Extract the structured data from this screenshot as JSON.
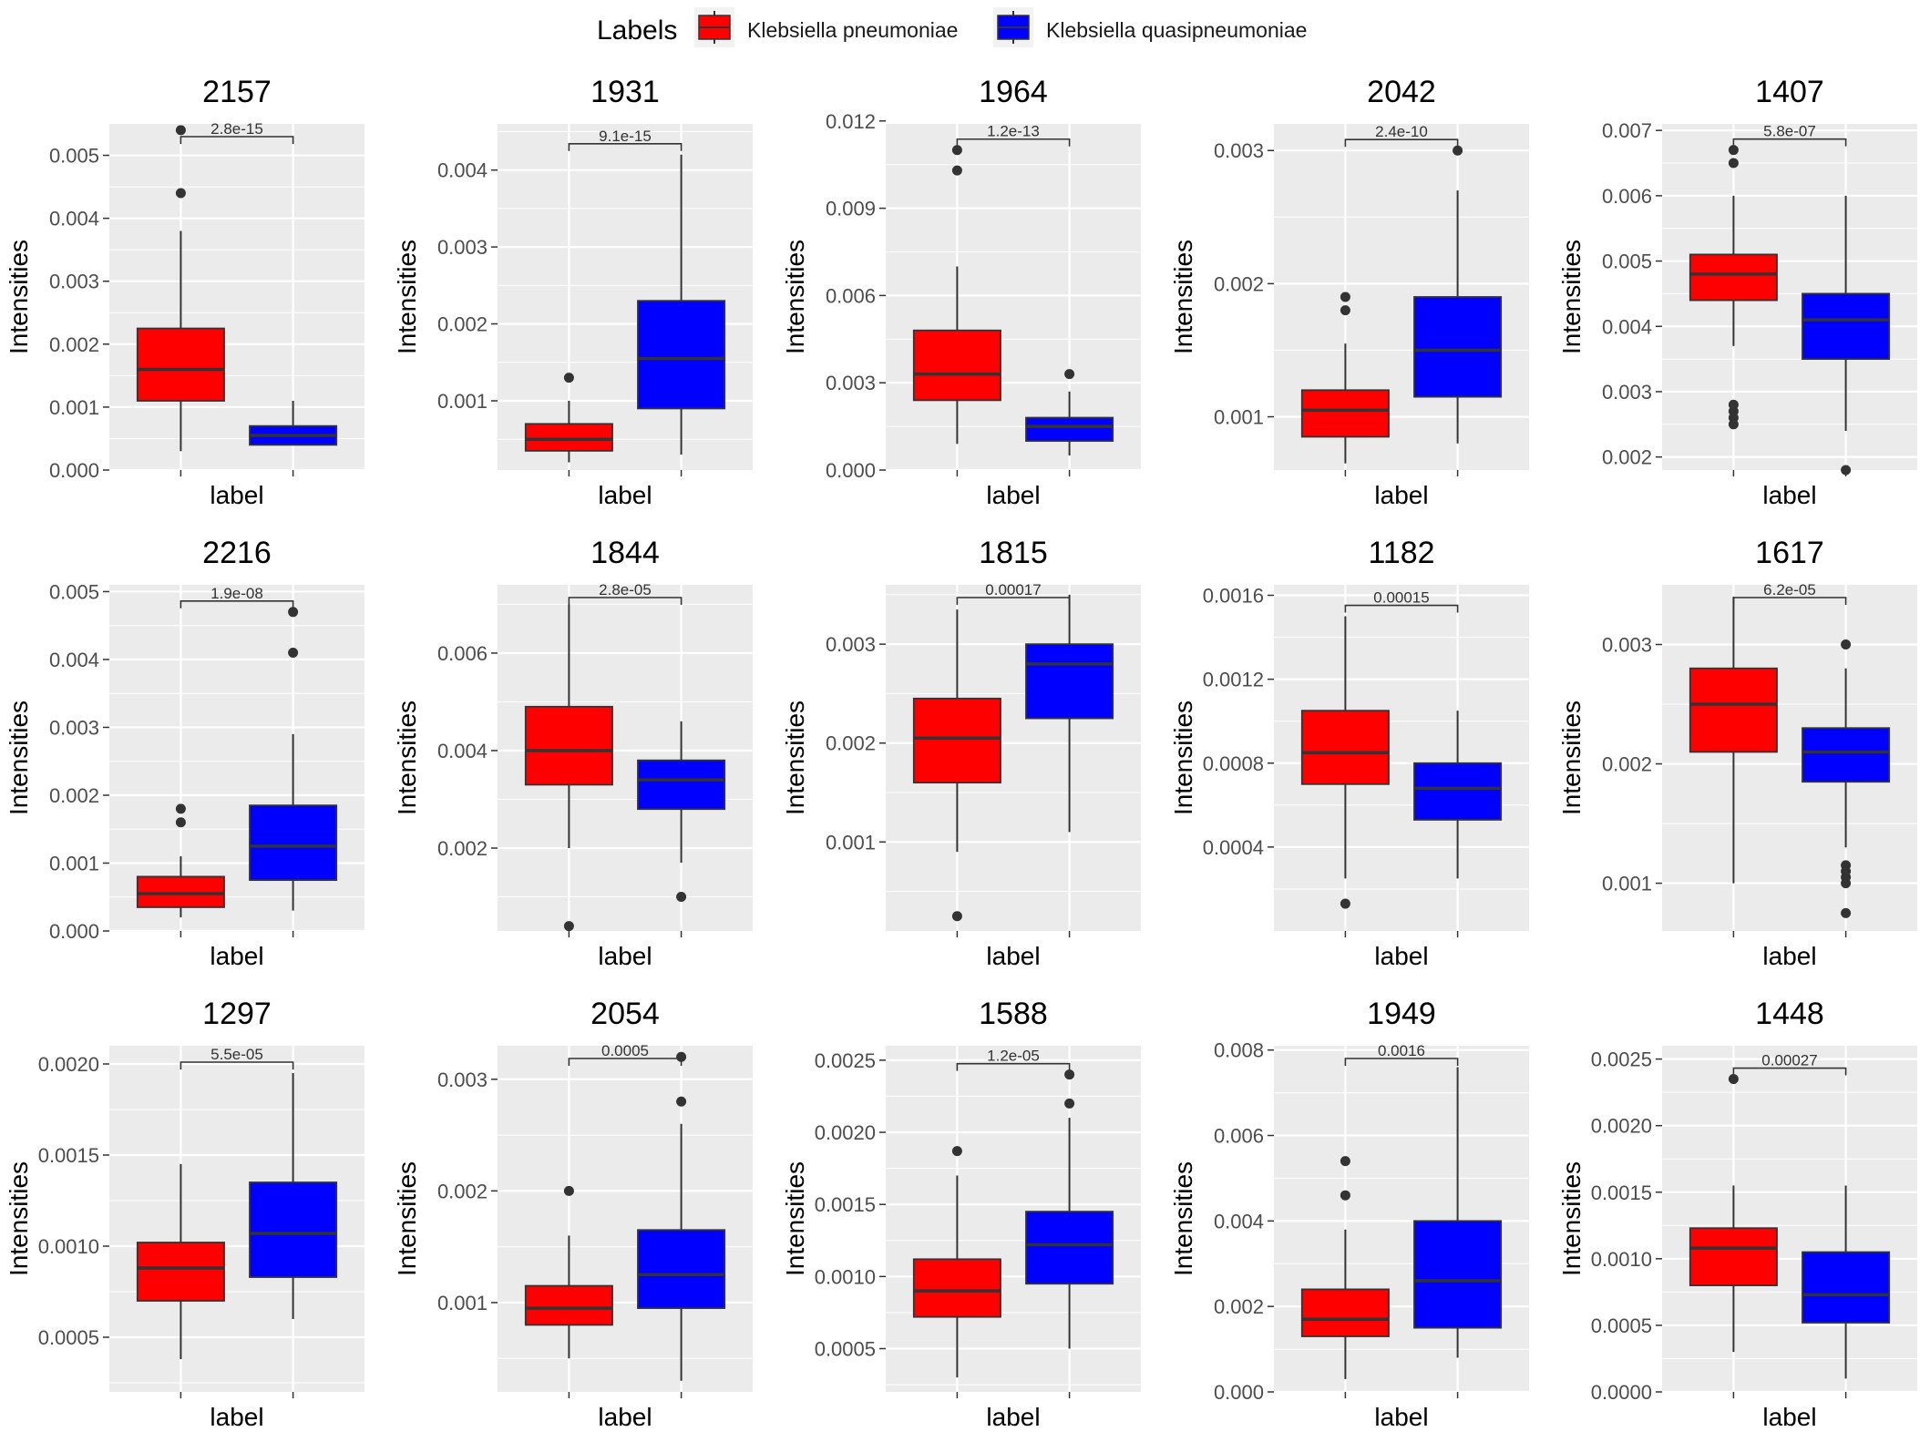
{
  "legend": {
    "title": "Labels",
    "items": [
      {
        "label": "Klebsiella pneumoniae",
        "color": "#FF0000"
      },
      {
        "label": "Klebsiella quasipneumoniae",
        "color": "#0000FF"
      }
    ]
  },
  "colors": {
    "panel_background": "#EBEBEB",
    "grid_line": "#FFFFFF",
    "box_outline": "#333333",
    "outlier": "#333333"
  },
  "chart_data": [
    {
      "type": "box",
      "title": "2157",
      "xlabel": "label",
      "ylabel": "Intensities",
      "pvalue": "2.8e-15",
      "ylim": [
        0,
        0.0055
      ],
      "yticks": [
        0,
        0.001,
        0.002,
        0.003,
        0.004,
        0.005
      ],
      "ytick_labels": [
        "0.000",
        "0.001",
        "0.002",
        "0.003",
        "0.004",
        "0.005"
      ],
      "groups": [
        {
          "name": "Klebsiella pneumoniae",
          "color": "#FF0000",
          "low": 0.0003,
          "q1": 0.0011,
          "median": 0.0016,
          "q3": 0.00225,
          "high": 0.0038,
          "outliers": [
            0.0044,
            0.0054
          ]
        },
        {
          "name": "Klebsiella quasipneumoniae",
          "color": "#0000FF",
          "low": 0.0004,
          "q1": 0.0004,
          "median": 0.00055,
          "q3": 0.0007,
          "high": 0.0011,
          "outliers": []
        }
      ]
    },
    {
      "type": "box",
      "title": "1931",
      "xlabel": "label",
      "ylabel": "Intensities",
      "pvalue": "9.1e-15",
      "ylim": [
        0.0001,
        0.0046
      ],
      "yticks": [
        0.001,
        0.002,
        0.003,
        0.004
      ],
      "ytick_labels": [
        "0.001",
        "0.002",
        "0.003",
        "0.004"
      ],
      "groups": [
        {
          "name": "Klebsiella pneumoniae",
          "color": "#FF0000",
          "low": 0.0002,
          "q1": 0.00035,
          "median": 0.0005,
          "q3": 0.0007,
          "high": 0.001,
          "outliers": [
            0.0013
          ]
        },
        {
          "name": "Klebsiella quasipneumoniae",
          "color": "#0000FF",
          "low": 0.0003,
          "q1": 0.0009,
          "median": 0.00155,
          "q3": 0.0023,
          "high": 0.0042,
          "outliers": []
        }
      ]
    },
    {
      "type": "box",
      "title": "1964",
      "xlabel": "label",
      "ylabel": "Intensities",
      "pvalue": "1.2e-13",
      "ylim": [
        0,
        0.0119
      ],
      "yticks": [
        0,
        0.003,
        0.006,
        0.009,
        0.012
      ],
      "ytick_labels": [
        "0.000",
        "0.003",
        "0.006",
        "0.009",
        "0.012"
      ],
      "groups": [
        {
          "name": "Klebsiella pneumoniae",
          "color": "#FF0000",
          "low": 0.0009,
          "q1": 0.0024,
          "median": 0.0033,
          "q3": 0.0048,
          "high": 0.007,
          "outliers": [
            0.0103,
            0.011
          ]
        },
        {
          "name": "Klebsiella quasipneumoniae",
          "color": "#0000FF",
          "low": 0.0005,
          "q1": 0.001,
          "median": 0.0015,
          "q3": 0.0018,
          "high": 0.0027,
          "outliers": [
            0.0033
          ]
        }
      ]
    },
    {
      "type": "box",
      "title": "2042",
      "xlabel": "label",
      "ylabel": "Intensities",
      "pvalue": "2.4e-10",
      "ylim": [
        0.0006,
        0.0032
      ],
      "yticks": [
        0.001,
        0.002,
        0.003
      ],
      "ytick_labels": [
        "0.001",
        "0.002",
        "0.003"
      ],
      "groups": [
        {
          "name": "Klebsiella pneumoniae",
          "color": "#FF0000",
          "low": 0.00065,
          "q1": 0.00085,
          "median": 0.00105,
          "q3": 0.0012,
          "high": 0.00155,
          "outliers": [
            0.0018,
            0.0019
          ]
        },
        {
          "name": "Klebsiella quasipneumoniae",
          "color": "#0000FF",
          "low": 0.0008,
          "q1": 0.00115,
          "median": 0.0015,
          "q3": 0.0019,
          "high": 0.0027,
          "outliers": [
            0.003
          ]
        }
      ]
    },
    {
      "type": "box",
      "title": "1407",
      "xlabel": "label",
      "ylabel": "Intensities",
      "pvalue": "5.8e-07",
      "ylim": [
        0.0018,
        0.0071
      ],
      "yticks": [
        0.002,
        0.003,
        0.004,
        0.005,
        0.006,
        0.007
      ],
      "ytick_labels": [
        "0.002",
        "0.003",
        "0.004",
        "0.005",
        "0.006",
        "0.007"
      ],
      "groups": [
        {
          "name": "Klebsiella pneumoniae",
          "color": "#FF0000",
          "low": 0.0037,
          "q1": 0.0044,
          "median": 0.0048,
          "q3": 0.0051,
          "high": 0.006,
          "outliers": [
            0.0025,
            0.0026,
            0.0027,
            0.0028,
            0.0065,
            0.0067
          ]
        },
        {
          "name": "Klebsiella quasipneumoniae",
          "color": "#0000FF",
          "low": 0.0024,
          "q1": 0.0035,
          "median": 0.0041,
          "q3": 0.0045,
          "high": 0.006,
          "outliers": [
            0.0018
          ]
        }
      ]
    },
    {
      "type": "box",
      "title": "2216",
      "xlabel": "label",
      "ylabel": "Intensities",
      "pvalue": "1.9e-08",
      "ylim": [
        0,
        0.0051
      ],
      "yticks": [
        0,
        0.001,
        0.002,
        0.003,
        0.004,
        0.005
      ],
      "ytick_labels": [
        "0.000",
        "0.001",
        "0.002",
        "0.003",
        "0.004",
        "0.005"
      ],
      "groups": [
        {
          "name": "Klebsiella pneumoniae",
          "color": "#FF0000",
          "low": 0.0002,
          "q1": 0.00035,
          "median": 0.00055,
          "q3": 0.0008,
          "high": 0.0011,
          "outliers": [
            0.0016,
            0.0018
          ]
        },
        {
          "name": "Klebsiella quasipneumoniae",
          "color": "#0000FF",
          "low": 0.0003,
          "q1": 0.00075,
          "median": 0.00125,
          "q3": 0.00185,
          "high": 0.0029,
          "outliers": [
            0.0041,
            0.0047
          ]
        }
      ]
    },
    {
      "type": "box",
      "title": "1844",
      "xlabel": "label",
      "ylabel": "Intensities",
      "pvalue": "2.8e-05",
      "ylim": [
        0.0003,
        0.0074
      ],
      "yticks": [
        0.002,
        0.004,
        0.006
      ],
      "ytick_labels": [
        "0.002",
        "0.004",
        "0.006"
      ],
      "groups": [
        {
          "name": "Klebsiella pneumoniae",
          "color": "#FF0000",
          "low": 0.002,
          "q1": 0.0033,
          "median": 0.004,
          "q3": 0.0049,
          "high": 0.007,
          "outliers": [
            0.0004
          ]
        },
        {
          "name": "Klebsiella quasipneumoniae",
          "color": "#0000FF",
          "low": 0.0017,
          "q1": 0.0028,
          "median": 0.0034,
          "q3": 0.0038,
          "high": 0.0046,
          "outliers": [
            0.001
          ]
        }
      ]
    },
    {
      "type": "box",
      "title": "1815",
      "xlabel": "label",
      "ylabel": "Intensities",
      "pvalue": "0.00017",
      "ylim": [
        0.0001,
        0.0036
      ],
      "yticks": [
        0.001,
        0.002,
        0.003
      ],
      "ytick_labels": [
        "0.001",
        "0.002",
        "0.003"
      ],
      "groups": [
        {
          "name": "Klebsiella pneumoniae",
          "color": "#FF0000",
          "low": 0.0009,
          "q1": 0.0016,
          "median": 0.00205,
          "q3": 0.00245,
          "high": 0.00335,
          "outliers": [
            0.00025
          ]
        },
        {
          "name": "Klebsiella quasipneumoniae",
          "color": "#0000FF",
          "low": 0.0011,
          "q1": 0.00225,
          "median": 0.0028,
          "q3": 0.003,
          "high": 0.0035,
          "outliers": []
        }
      ]
    },
    {
      "type": "box",
      "title": "1182",
      "xlabel": "label",
      "ylabel": "Intensities",
      "pvalue": "0.00015",
      "ylim": [
        0,
        0.00165
      ],
      "yticks": [
        0.0004,
        0.0008,
        0.0012,
        0.0016
      ],
      "ytick_labels": [
        "0.0004",
        "0.0008",
        "0.0012",
        "0.0016"
      ],
      "groups": [
        {
          "name": "Klebsiella pneumoniae",
          "color": "#FF0000",
          "low": 0.00025,
          "q1": 0.0007,
          "median": 0.00085,
          "q3": 0.00105,
          "high": 0.0015,
          "outliers": [
            0.00013
          ]
        },
        {
          "name": "Klebsiella quasipneumoniae",
          "color": "#0000FF",
          "low": 0.00025,
          "q1": 0.00053,
          "median": 0.00068,
          "q3": 0.0008,
          "high": 0.00105,
          "outliers": []
        }
      ]
    },
    {
      "type": "box",
      "title": "1617",
      "xlabel": "label",
      "ylabel": "Intensities",
      "pvalue": "6.2e-05",
      "ylim": [
        0.0006,
        0.0035
      ],
      "yticks": [
        0.001,
        0.002,
        0.003
      ],
      "ytick_labels": [
        "0.001",
        "0.002",
        "0.003"
      ],
      "groups": [
        {
          "name": "Klebsiella pneumoniae",
          "color": "#FF0000",
          "low": 0.001,
          "q1": 0.0021,
          "median": 0.0025,
          "q3": 0.0028,
          "high": 0.0034,
          "outliers": []
        },
        {
          "name": "Klebsiella quasipneumoniae",
          "color": "#0000FF",
          "low": 0.0013,
          "q1": 0.00185,
          "median": 0.0021,
          "q3": 0.0023,
          "high": 0.0028,
          "outliers": [
            0.00075,
            0.001,
            0.00105,
            0.0011,
            0.00115,
            0.003
          ]
        }
      ]
    },
    {
      "type": "box",
      "title": "1297",
      "xlabel": "label",
      "ylabel": "Intensities",
      "pvalue": "5.5e-05",
      "ylim": [
        0.0002,
        0.0021
      ],
      "yticks": [
        0.0005,
        0.001,
        0.0015,
        0.002
      ],
      "ytick_labels": [
        "0.0005",
        "0.0010",
        "0.0015",
        "0.0020"
      ],
      "groups": [
        {
          "name": "Klebsiella pneumoniae",
          "color": "#FF0000",
          "low": 0.00038,
          "q1": 0.0007,
          "median": 0.00088,
          "q3": 0.00102,
          "high": 0.00145,
          "outliers": []
        },
        {
          "name": "Klebsiella quasipneumoniae",
          "color": "#0000FF",
          "low": 0.0006,
          "q1": 0.00083,
          "median": 0.00107,
          "q3": 0.00135,
          "high": 0.00195,
          "outliers": []
        }
      ]
    },
    {
      "type": "box",
      "title": "2054",
      "xlabel": "label",
      "ylabel": "Intensities",
      "pvalue": "0.0005",
      "ylim": [
        0.0002,
        0.0033
      ],
      "yticks": [
        0.001,
        0.002,
        0.003
      ],
      "ytick_labels": [
        "0.001",
        "0.002",
        "0.003"
      ],
      "groups": [
        {
          "name": "Klebsiella pneumoniae",
          "color": "#FF0000",
          "low": 0.0005,
          "q1": 0.0008,
          "median": 0.00095,
          "q3": 0.00115,
          "high": 0.0016,
          "outliers": [
            0.002
          ]
        },
        {
          "name": "Klebsiella quasipneumoniae",
          "color": "#0000FF",
          "low": 0.0003,
          "q1": 0.00095,
          "median": 0.00125,
          "q3": 0.00165,
          "high": 0.0026,
          "outliers": [
            0.0028,
            0.0032
          ]
        }
      ]
    },
    {
      "type": "box",
      "title": "1588",
      "xlabel": "label",
      "ylabel": "Intensities",
      "pvalue": "1.2e-05",
      "ylim": [
        0.0002,
        0.0026
      ],
      "yticks": [
        0.0005,
        0.001,
        0.0015,
        0.002,
        0.0025
      ],
      "ytick_labels": [
        "0.0005",
        "0.0010",
        "0.0015",
        "0.0020",
        "0.0025"
      ],
      "groups": [
        {
          "name": "Klebsiella pneumoniae",
          "color": "#FF0000",
          "low": 0.0003,
          "q1": 0.00072,
          "median": 0.0009,
          "q3": 0.00112,
          "high": 0.0017,
          "outliers": [
            0.00187
          ]
        },
        {
          "name": "Klebsiella quasipneumoniae",
          "color": "#0000FF",
          "low": 0.0005,
          "q1": 0.00095,
          "median": 0.00122,
          "q3": 0.00145,
          "high": 0.0021,
          "outliers": [
            0.0022,
            0.0024
          ]
        }
      ]
    },
    {
      "type": "box",
      "title": "1949",
      "xlabel": "label",
      "ylabel": "Intensities",
      "pvalue": "0.0016",
      "ylim": [
        0,
        0.0081
      ],
      "yticks": [
        0,
        0.002,
        0.004,
        0.006,
        0.008
      ],
      "ytick_labels": [
        "0.000",
        "0.002",
        "0.004",
        "0.006",
        "0.008"
      ],
      "groups": [
        {
          "name": "Klebsiella pneumoniae",
          "color": "#FF0000",
          "low": 0.0003,
          "q1": 0.0013,
          "median": 0.0017,
          "q3": 0.0024,
          "high": 0.0038,
          "outliers": [
            0.0046,
            0.0054
          ]
        },
        {
          "name": "Klebsiella quasipneumoniae",
          "color": "#0000FF",
          "low": 0.0008,
          "q1": 0.0015,
          "median": 0.0026,
          "q3": 0.004,
          "high": 0.0076,
          "outliers": []
        }
      ]
    },
    {
      "type": "box",
      "title": "1448",
      "xlabel": "label",
      "ylabel": "Intensities",
      "pvalue": "0.00027",
      "ylim": [
        0,
        0.0026
      ],
      "yticks": [
        0,
        0.0005,
        0.001,
        0.0015,
        0.002,
        0.0025
      ],
      "ytick_labels": [
        "0.0000",
        "0.0005",
        "0.0010",
        "0.0015",
        "0.0020",
        "0.0025"
      ],
      "groups": [
        {
          "name": "Klebsiella pneumoniae",
          "color": "#FF0000",
          "low": 0.0003,
          "q1": 0.0008,
          "median": 0.00108,
          "q3": 0.00123,
          "high": 0.00155,
          "outliers": [
            0.00235
          ]
        },
        {
          "name": "Klebsiella quasipneumoniae",
          "color": "#0000FF",
          "low": 0.0001,
          "q1": 0.00052,
          "median": 0.00073,
          "q3": 0.00105,
          "high": 0.00155,
          "outliers": []
        }
      ]
    }
  ]
}
